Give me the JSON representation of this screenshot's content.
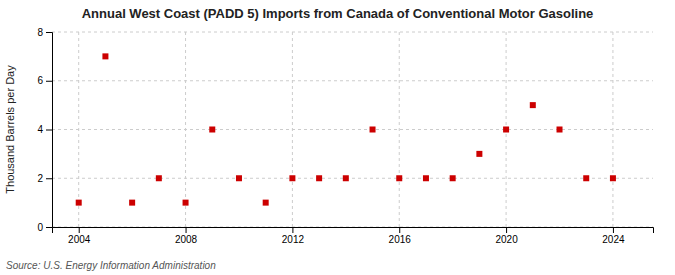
{
  "chart_data": {
    "type": "scatter",
    "title": "Annual West Coast (PADD 5) Imports from Canada of Conventional Motor Gasoline",
    "ylabel": "Thousand Barrels per Day",
    "source": "Source: U.S. Energy Information Administration",
    "x": [
      2004,
      2005,
      2006,
      2007,
      2008,
      2009,
      2010,
      2011,
      2012,
      2013,
      2014,
      2015,
      2016,
      2017,
      2018,
      2019,
      2020,
      2021,
      2022,
      2023,
      2024
    ],
    "values": [
      1,
      7,
      1,
      2,
      1,
      4,
      2,
      1,
      2,
      2,
      2,
      4,
      2,
      2,
      2,
      3,
      4,
      5,
      4,
      2,
      2
    ],
    "color": "#cc0000",
    "marker": "square",
    "xlim": [
      2003.0,
      2025.5
    ],
    "ylim": [
      0,
      8
    ],
    "xticks": [
      2004,
      2008,
      2012,
      2016,
      2020,
      2024
    ],
    "yticks": [
      0,
      2,
      4,
      6,
      8
    ],
    "grid": true
  }
}
